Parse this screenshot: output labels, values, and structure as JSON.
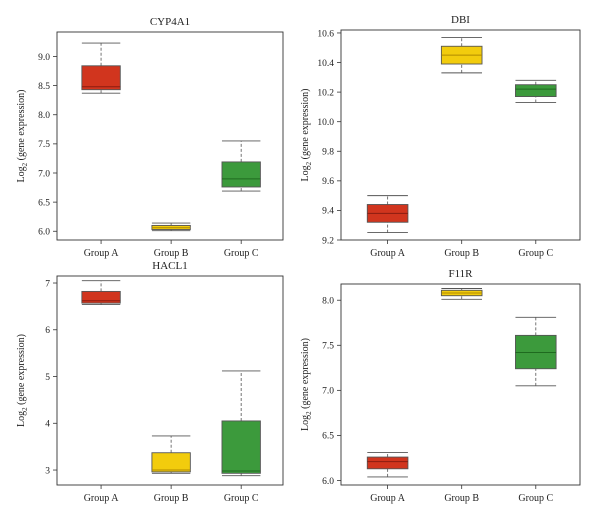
{
  "chart_data": [
    {
      "type": "box",
      "title": "CYP4A1",
      "ylabel": "Log2 (gene expression)",
      "ylabel_base": "Log",
      "ylabel_sub": "2",
      "ylabel_rest": " (gene expression)",
      "categories": [
        "Group A",
        "Group B",
        "Group C"
      ],
      "ylim": [
        5.85,
        9.42
      ],
      "yticks": [
        6.0,
        6.5,
        7.0,
        7.5,
        8.0,
        8.5,
        9.0
      ],
      "yticklabels": [
        "6.0",
        "6.5",
        "7.0",
        "7.5",
        "8.0",
        "8.5",
        "9.0"
      ],
      "boxes": [
        {
          "min": 8.37,
          "q1": 8.43,
          "median": 8.48,
          "q3": 8.84,
          "max": 9.23
        },
        {
          "min": 6.01,
          "q1": 6.03,
          "median": 6.06,
          "q3": 6.1,
          "max": 6.14
        },
        {
          "min": 6.69,
          "q1": 6.76,
          "median": 6.9,
          "q3": 7.19,
          "max": 7.55
        }
      ]
    },
    {
      "type": "box",
      "title": "DBI",
      "ylabel": "Log2 (gene expression)",
      "ylabel_base": "Log",
      "ylabel_sub": "2",
      "ylabel_rest": " (gene expression)",
      "categories": [
        "Group A",
        "Group B",
        "Group C"
      ],
      "ylim": [
        9.2,
        10.62
      ],
      "yticks": [
        9.2,
        9.4,
        9.6,
        9.8,
        10.0,
        10.2,
        10.4,
        10.6
      ],
      "yticklabels": [
        "9.2",
        "9.4",
        "9.6",
        "9.8",
        "10.0",
        "10.2",
        "10.4",
        "10.6"
      ],
      "boxes": [
        {
          "min": 9.25,
          "q1": 9.32,
          "median": 9.38,
          "q3": 9.44,
          "max": 9.5
        },
        {
          "min": 10.33,
          "q1": 10.39,
          "median": 10.45,
          "q3": 10.51,
          "max": 10.57
        },
        {
          "min": 10.13,
          "q1": 10.17,
          "median": 10.22,
          "q3": 10.25,
          "max": 10.28
        }
      ]
    },
    {
      "type": "box",
      "title": "HACL1",
      "ylabel": "Log2 (gene expression)",
      "ylabel_base": "Log",
      "ylabel_sub": "2",
      "ylabel_rest": " (gene expression)",
      "categories": [
        "Group A",
        "Group B",
        "Group C"
      ],
      "ylim": [
        2.68,
        7.15
      ],
      "yticks": [
        3,
        4,
        5,
        6,
        7
      ],
      "yticklabels": [
        "3",
        "4",
        "5",
        "6",
        "7"
      ],
      "boxes": [
        {
          "min": 6.54,
          "q1": 6.57,
          "median": 6.62,
          "q3": 6.82,
          "max": 7.05
        },
        {
          "min": 2.93,
          "q1": 2.96,
          "median": 3.0,
          "q3": 3.37,
          "max": 3.73
        },
        {
          "min": 2.88,
          "q1": 2.93,
          "median": 2.98,
          "q3": 4.05,
          "max": 5.12
        }
      ]
    },
    {
      "type": "box",
      "title": "F11R",
      "ylabel": "Log2 (gene expression)",
      "ylabel_base": "Log",
      "ylabel_sub": "2",
      "ylabel_rest": " (gene expression)",
      "categories": [
        "Group A",
        "Group B",
        "Group C"
      ],
      "ylim": [
        5.95,
        8.18
      ],
      "yticks": [
        6.0,
        6.5,
        7.0,
        7.5,
        8.0
      ],
      "yticklabels": [
        "6.0",
        "6.5",
        "7.0",
        "7.5",
        "8.0"
      ],
      "boxes": [
        {
          "min": 6.04,
          "q1": 6.13,
          "median": 6.21,
          "q3": 6.26,
          "max": 6.31
        },
        {
          "min": 8.01,
          "q1": 8.05,
          "median": 8.08,
          "q3": 8.11,
          "max": 8.13
        },
        {
          "min": 7.05,
          "q1": 7.24,
          "median": 7.42,
          "q3": 7.61,
          "max": 7.81
        }
      ]
    }
  ],
  "colors": {
    "group_a": "#d1351e",
    "group_b": "#f2cc0d",
    "group_c": "#3c9a3c",
    "median_line": "#8a1c10"
  }
}
